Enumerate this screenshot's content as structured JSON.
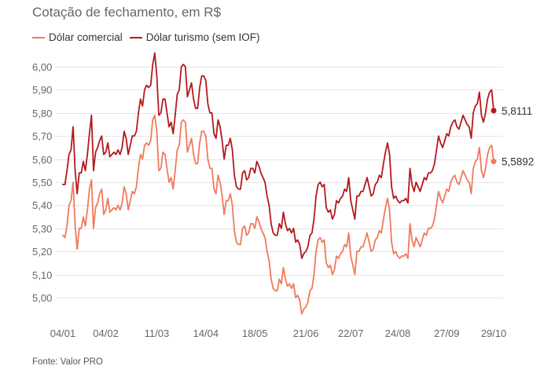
{
  "title": "Cotação de fechamento, em R$",
  "source": "Fonte: Valor PRO",
  "colors": {
    "comercial": "#f07a5c",
    "turismo": "#b3191d",
    "grid": "#e6e6e6",
    "text": "#666666"
  },
  "chart_data": {
    "type": "line",
    "title": "Cotação de fechamento, em R$",
    "ylabel": "",
    "xlabel": "",
    "ylim": [
      4.9,
      6.1
    ],
    "grid": true,
    "legend_placement": "top-left",
    "y_ticks": [
      "5,00",
      "5,10",
      "5,20",
      "5,30",
      "5,40",
      "5,50",
      "5,60",
      "5,70",
      "5,80",
      "5,90",
      "6,00"
    ],
    "y_tick_values": [
      5.0,
      5.1,
      5.2,
      5.3,
      5.4,
      5.5,
      5.6,
      5.7,
      5.8,
      5.9,
      6.0
    ],
    "x_ticks": [
      "04/01",
      "04/02",
      "11/03",
      "14/04",
      "18/05",
      "21/06",
      "22/07",
      "24/08",
      "27/09",
      "29/10"
    ],
    "x_tick_index": [
      0,
      21,
      46,
      70,
      94,
      119,
      141,
      164,
      188,
      211
    ],
    "series": [
      {
        "name": "Dólar comercial",
        "color": "#f07a5c",
        "end_label": "5,5892",
        "values": [
          5.27,
          5.26,
          5.31,
          5.4,
          5.42,
          5.5,
          5.31,
          5.21,
          5.3,
          5.3,
          5.35,
          5.31,
          5.38,
          5.47,
          5.51,
          5.3,
          5.39,
          5.41,
          5.45,
          5.47,
          5.36,
          5.38,
          5.43,
          5.37,
          5.38,
          5.39,
          5.38,
          5.4,
          5.38,
          5.41,
          5.48,
          5.45,
          5.38,
          5.42,
          5.46,
          5.45,
          5.48,
          5.56,
          5.62,
          5.6,
          5.66,
          5.67,
          5.66,
          5.68,
          5.77,
          5.79,
          5.72,
          5.55,
          5.56,
          5.63,
          5.62,
          5.56,
          5.5,
          5.52,
          5.47,
          5.55,
          5.64,
          5.66,
          5.76,
          5.77,
          5.76,
          5.63,
          5.66,
          5.69,
          5.62,
          5.58,
          5.58,
          5.67,
          5.72,
          5.72,
          5.7,
          5.6,
          5.56,
          5.56,
          5.47,
          5.45,
          5.53,
          5.5,
          5.44,
          5.36,
          5.42,
          5.42,
          5.45,
          5.4,
          5.29,
          5.24,
          5.23,
          5.23,
          5.3,
          5.31,
          5.27,
          5.28,
          5.32,
          5.32,
          5.3,
          5.35,
          5.33,
          5.3,
          5.28,
          5.26,
          5.2,
          5.16,
          5.08,
          5.04,
          5.03,
          5.03,
          5.08,
          5.06,
          5.13,
          5.08,
          5.05,
          5.06,
          5.04,
          5.06,
          5.0,
          5.01,
          4.99,
          4.93,
          4.95,
          4.96,
          4.98,
          5.03,
          5.04,
          5.1,
          5.2,
          5.25,
          5.26,
          5.24,
          5.25,
          5.15,
          5.13,
          5.14,
          5.1,
          5.12,
          5.18,
          5.17,
          5.19,
          5.2,
          5.23,
          5.22,
          5.28,
          5.18,
          5.14,
          5.1,
          5.2,
          5.2,
          5.22,
          5.22,
          5.25,
          5.28,
          5.24,
          5.2,
          5.21,
          5.25,
          5.26,
          5.29,
          5.28,
          5.34,
          5.39,
          5.43,
          5.38,
          5.24,
          5.19,
          5.2,
          5.18,
          5.17,
          5.18,
          5.18,
          5.19,
          5.17,
          5.32,
          5.25,
          5.22,
          5.26,
          5.24,
          5.22,
          5.25,
          5.28,
          5.27,
          5.3,
          5.3,
          5.31,
          5.34,
          5.4,
          5.46,
          5.43,
          5.41,
          5.44,
          5.47,
          5.46,
          5.5,
          5.52,
          5.53,
          5.5,
          5.49,
          5.52,
          5.55,
          5.53,
          5.51,
          5.5,
          5.45,
          5.56,
          5.59,
          5.6,
          5.65,
          5.55,
          5.52,
          5.56,
          5.62,
          5.65,
          5.66,
          5.59
        ]
      },
      {
        "name": "Dólar turismo (sem IOF)",
        "color": "#b3191d",
        "end_label": "5,8111",
        "values": [
          5.49,
          5.49,
          5.55,
          5.62,
          5.64,
          5.74,
          5.55,
          5.45,
          5.54,
          5.54,
          5.59,
          5.55,
          5.62,
          5.71,
          5.79,
          5.55,
          5.63,
          5.65,
          5.68,
          5.7,
          5.62,
          5.63,
          5.67,
          5.61,
          5.62,
          5.63,
          5.62,
          5.64,
          5.62,
          5.65,
          5.72,
          5.69,
          5.62,
          5.66,
          5.7,
          5.7,
          5.72,
          5.8,
          5.86,
          5.83,
          5.9,
          5.92,
          5.91,
          5.92,
          6.01,
          6.06,
          5.96,
          5.79,
          5.8,
          5.86,
          5.86,
          5.8,
          5.74,
          5.76,
          5.71,
          5.79,
          5.88,
          5.9,
          6.0,
          6.01,
          6.0,
          5.87,
          5.9,
          5.93,
          5.86,
          5.82,
          5.82,
          5.91,
          5.96,
          5.96,
          5.94,
          5.84,
          5.8,
          5.8,
          5.71,
          5.69,
          5.77,
          5.74,
          5.68,
          5.6,
          5.66,
          5.66,
          5.69,
          5.64,
          5.53,
          5.48,
          5.47,
          5.47,
          5.54,
          5.55,
          5.51,
          5.52,
          5.56,
          5.56,
          5.54,
          5.59,
          5.57,
          5.54,
          5.52,
          5.5,
          5.44,
          5.4,
          5.32,
          5.28,
          5.27,
          5.27,
          5.32,
          5.3,
          5.37,
          5.32,
          5.29,
          5.3,
          5.28,
          5.3,
          5.24,
          5.25,
          5.23,
          5.17,
          5.19,
          5.2,
          5.22,
          5.27,
          5.28,
          5.34,
          5.44,
          5.49,
          5.5,
          5.48,
          5.49,
          5.39,
          5.37,
          5.38,
          5.34,
          5.36,
          5.42,
          5.41,
          5.43,
          5.44,
          5.47,
          5.46,
          5.52,
          5.42,
          5.38,
          5.34,
          5.44,
          5.44,
          5.46,
          5.46,
          5.49,
          5.52,
          5.48,
          5.44,
          5.45,
          5.49,
          5.5,
          5.53,
          5.52,
          5.58,
          5.63,
          5.67,
          5.62,
          5.48,
          5.43,
          5.44,
          5.42,
          5.41,
          5.42,
          5.42,
          5.43,
          5.41,
          5.56,
          5.49,
          5.46,
          5.5,
          5.48,
          5.46,
          5.49,
          5.52,
          5.51,
          5.54,
          5.54,
          5.55,
          5.58,
          5.64,
          5.7,
          5.67,
          5.65,
          5.68,
          5.71,
          5.7,
          5.74,
          5.76,
          5.77,
          5.74,
          5.73,
          5.76,
          5.79,
          5.77,
          5.75,
          5.74,
          5.69,
          5.8,
          5.83,
          5.84,
          5.89,
          5.79,
          5.76,
          5.8,
          5.86,
          5.89,
          5.9,
          5.81
        ]
      }
    ]
  }
}
